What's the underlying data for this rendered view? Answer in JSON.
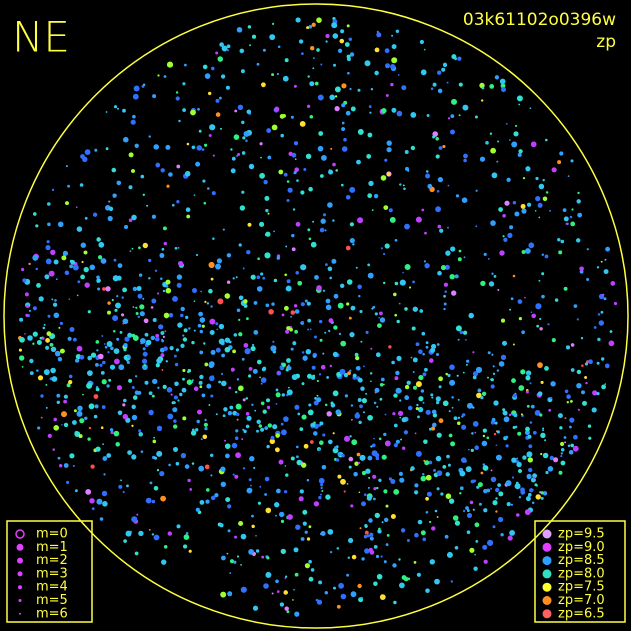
{
  "header": {
    "direction": "NE",
    "frame_id": "03k61102o0396w",
    "mode": "zp"
  },
  "legend_magnitude": {
    "items": [
      "m=0",
      "m=1",
      "m=2",
      "m=3",
      "m=4",
      "m=5",
      "m=6"
    ]
  },
  "legend_zp": {
    "items": [
      "zp=9.5",
      "zp=9.0",
      "zp=8.5",
      "zp=8.0",
      "zp=7.5",
      "zp=7.0",
      "zp=6.5"
    ]
  }
}
